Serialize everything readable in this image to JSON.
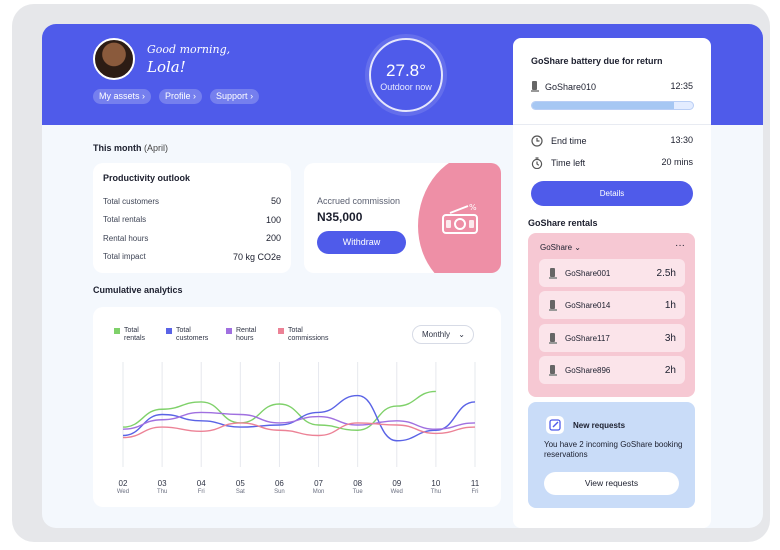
{
  "header": {
    "greeting": "Good morning,",
    "name": "Lola!",
    "links": [
      "My assets",
      "Profile",
      "Support"
    ],
    "temperature": "27.8°",
    "temperature_label": "Outdoor now"
  },
  "month": {
    "label": "This month",
    "month": "(April)"
  },
  "productivity": {
    "title": "Productivity outlook",
    "rows": [
      {
        "label": "Total customers",
        "value": "50"
      },
      {
        "label": "Total rentals",
        "value": "100"
      },
      {
        "label": "Rental hours",
        "value": "200"
      },
      {
        "label": "Total impact",
        "value": "70 kg CO2e"
      }
    ]
  },
  "commission": {
    "label": "Accrued commission",
    "amount": "N35,000",
    "withdraw_label": "Withdraw",
    "icon": "money-icon"
  },
  "analytics": {
    "title": "Cumulative analytics",
    "period": "Monthly"
  },
  "chart_data": {
    "type": "line",
    "x": [
      "02",
      "03",
      "04",
      "05",
      "06",
      "07",
      "08",
      "09",
      "10",
      "11"
    ],
    "x_sub": [
      "Wed",
      "Thu",
      "Fri",
      "Sat",
      "Sun",
      "Mon",
      "Tue",
      "Wed",
      "Thu",
      "Fri"
    ],
    "series": [
      {
        "name": "Total rentals",
        "color": "#7fd16a",
        "values": [
          38,
          55,
          62,
          42,
          60,
          40,
          35,
          58,
          72,
          null
        ]
      },
      {
        "name": "Total customers",
        "color": "#5a63e6",
        "values": [
          30,
          50,
          44,
          38,
          40,
          52,
          68,
          25,
          35,
          62
        ]
      },
      {
        "name": "Rental hours",
        "color": "#a070e0",
        "values": [
          36,
          45,
          52,
          50,
          42,
          48,
          40,
          44,
          36,
          42
        ]
      },
      {
        "name": "Total commissions",
        "color": "#ec8296",
        "values": [
          28,
          38,
          34,
          42,
          35,
          30,
          42,
          40,
          32,
          38
        ]
      }
    ],
    "ylim": [
      0,
      100
    ],
    "grid": "vertical"
  },
  "battery": {
    "title": "GoShare battery due for return",
    "device": "GoShare010",
    "time": "12:35",
    "progress": 0.88,
    "end_label": "End time",
    "end_value": "13:30",
    "left_label": "Time left",
    "left_value": "20 mins",
    "details_label": "Details"
  },
  "rentals": {
    "title": "GoShare rentals",
    "dropdown": "GoShare",
    "menu": "···",
    "items": [
      {
        "name": "GoShare001",
        "hours": "2.5h"
      },
      {
        "name": "GoShare014",
        "hours": "1h"
      },
      {
        "name": "GoShare117",
        "hours": "3h"
      },
      {
        "name": "GoShare896",
        "hours": "2h"
      }
    ]
  },
  "requests": {
    "title": "New requests",
    "text": "You have 2 incoming GoShare booking reservations",
    "button": "View requests"
  },
  "colors": {
    "primary": "#4f5bea",
    "pink": "#f6c8d3",
    "blue_light": "#c9dcf8"
  }
}
